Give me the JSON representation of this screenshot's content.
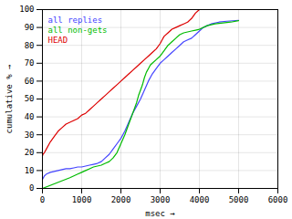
{
  "chart_data": {
    "type": "line",
    "title": "",
    "xlabel": "msec",
    "ylabel": "cumulative %",
    "xlim": [
      0,
      6000
    ],
    "ylim": [
      0,
      100
    ],
    "xticks": [
      0,
      1000,
      2000,
      3000,
      4000,
      5000,
      6000
    ],
    "yticks": [
      0,
      10,
      20,
      30,
      40,
      50,
      60,
      70,
      80,
      90,
      100
    ],
    "grid": true,
    "legend": "upper left",
    "series": [
      {
        "name": "all replies",
        "color": "#4444ff",
        "x": [
          0,
          50,
          100,
          200,
          300,
          400,
          500,
          600,
          700,
          800,
          900,
          1000,
          1100,
          1200,
          1300,
          1400,
          1500,
          1600,
          1700,
          1800,
          1900,
          2000,
          2100,
          2200,
          2300,
          2400,
          2500,
          2600,
          2700,
          2800,
          2900,
          3000,
          3100,
          3200,
          3300,
          3400,
          3500,
          3600,
          3700,
          3800,
          3900,
          4000,
          4100,
          4200,
          4300,
          4500,
          4700,
          5000
        ],
        "values": [
          5,
          7,
          8,
          9,
          9.5,
          10,
          10.5,
          11,
          11,
          11.5,
          12,
          12,
          12.5,
          13,
          13.5,
          14,
          15,
          17,
          19,
          22,
          25,
          28,
          32,
          37,
          42,
          46,
          50,
          55,
          60,
          64,
          67,
          70,
          72,
          74,
          76,
          78,
          80,
          82,
          83,
          84,
          86,
          88,
          90,
          91,
          92,
          93,
          93.5,
          94
        ]
      },
      {
        "name": "all non-gets",
        "color": "#00bb00",
        "x": [
          0,
          700,
          750,
          800,
          900,
          1000,
          1100,
          1200,
          1300,
          1400,
          1500,
          1600,
          1700,
          1800,
          1900,
          2000,
          2100,
          2200,
          2300,
          2400,
          2450,
          2500,
          2550,
          2600,
          2650,
          2700,
          2750,
          2800,
          2900,
          3000,
          3100,
          3200,
          3300,
          3400,
          3500,
          3600,
          3700,
          3800,
          3900,
          4000,
          4200,
          4400,
          4600,
          4800,
          5000
        ],
        "values": [
          0,
          6,
          6.5,
          7,
          8,
          9,
          10,
          11,
          12,
          12.5,
          13,
          14,
          15,
          17,
          20,
          25,
          30,
          36,
          42,
          48,
          52,
          55,
          58,
          62,
          65,
          67,
          69,
          70,
          72,
          74,
          77,
          80,
          82,
          84,
          86,
          87,
          87.5,
          88,
          88.5,
          89,
          91,
          92,
          92.5,
          93,
          93.8
        ]
      },
      {
        "name": "HEAD",
        "color": "#dd0000",
        "x": [
          0,
          10,
          50,
          100,
          200,
          300,
          400,
          500,
          600,
          700,
          800,
          900,
          1000,
          1100,
          1200,
          1300,
          1400,
          1500,
          1600,
          1700,
          1800,
          1900,
          2000,
          2100,
          2200,
          2300,
          2400,
          2500,
          2600,
          2700,
          2800,
          2900,
          3000,
          3050,
          3100,
          3200,
          3300,
          3400,
          3500,
          3600,
          3700,
          3800,
          3900,
          4000
        ],
        "values": [
          18,
          19,
          20,
          22,
          26,
          29,
          32,
          34,
          36,
          37,
          38,
          39,
          41,
          42,
          44,
          46,
          48,
          50,
          52,
          54,
          56,
          58,
          60,
          62,
          64,
          66,
          68,
          70,
          72,
          74,
          76,
          78,
          81,
          83,
          85,
          87,
          89,
          90,
          91,
          92,
          93,
          95,
          98,
          100
        ]
      }
    ]
  }
}
